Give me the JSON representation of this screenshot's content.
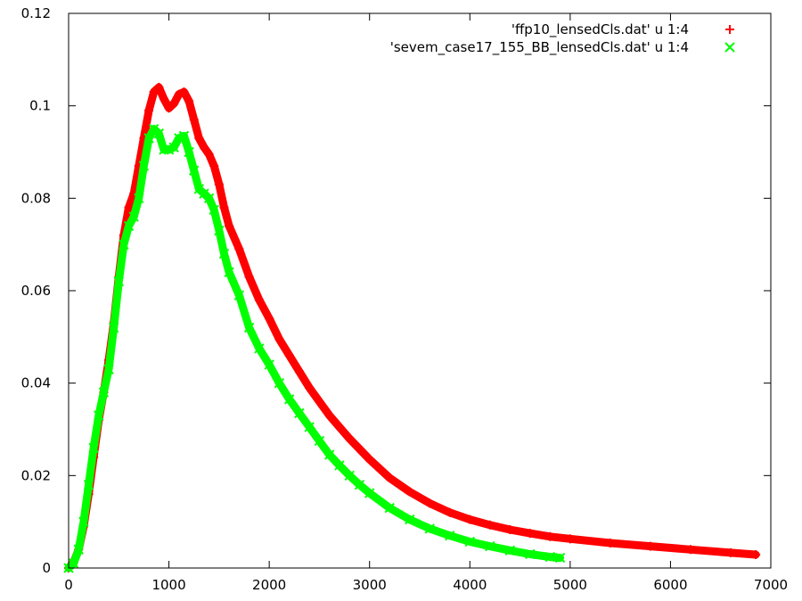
{
  "chart_data": {
    "type": "line",
    "title": "",
    "xlabel": "",
    "ylabel": "",
    "xlim": [
      0,
      7000
    ],
    "ylim": [
      0,
      0.12
    ],
    "x_ticks": [
      0,
      1000,
      2000,
      3000,
      4000,
      5000,
      6000,
      7000
    ],
    "x_tick_labels": [
      "0",
      "1000",
      "2000",
      "3000",
      "4000",
      "5000",
      "6000",
      "7000"
    ],
    "y_ticks": [
      0,
      0.02,
      0.04,
      0.06,
      0.08,
      0.1,
      0.12
    ],
    "y_tick_labels": [
      "0",
      "0.02",
      "0.04",
      "0.06",
      "0.08",
      "0.1",
      "0.12"
    ],
    "grid": false,
    "legend_position": "top-right",
    "series": [
      {
        "name": "'ffp10_lensedCls.dat' u 1:4",
        "color": "#ff0000",
        "marker": "+",
        "points": [
          [
            0,
            0.0
          ],
          [
            50,
            0.0012
          ],
          [
            100,
            0.004
          ],
          [
            150,
            0.009
          ],
          [
            200,
            0.016
          ],
          [
            250,
            0.024
          ],
          [
            300,
            0.032
          ],
          [
            350,
            0.038
          ],
          [
            400,
            0.045
          ],
          [
            450,
            0.053
          ],
          [
            500,
            0.063
          ],
          [
            550,
            0.072
          ],
          [
            600,
            0.078
          ],
          [
            650,
            0.081
          ],
          [
            700,
            0.087
          ],
          [
            750,
            0.093
          ],
          [
            800,
            0.099
          ],
          [
            850,
            0.103
          ],
          [
            900,
            0.104
          ],
          [
            950,
            0.1015
          ],
          [
            1000,
            0.0995
          ],
          [
            1050,
            0.1005
          ],
          [
            1100,
            0.1025
          ],
          [
            1150,
            0.103
          ],
          [
            1200,
            0.101
          ],
          [
            1250,
            0.097
          ],
          [
            1300,
            0.093
          ],
          [
            1350,
            0.091
          ],
          [
            1400,
            0.0895
          ],
          [
            1450,
            0.087
          ],
          [
            1500,
            0.083
          ],
          [
            1550,
            0.078
          ],
          [
            1600,
            0.074
          ],
          [
            1700,
            0.069
          ],
          [
            1800,
            0.063
          ],
          [
            1900,
            0.058
          ],
          [
            2000,
            0.054
          ],
          [
            2100,
            0.0495
          ],
          [
            2200,
            0.046
          ],
          [
            2300,
            0.0425
          ],
          [
            2400,
            0.039
          ],
          [
            2500,
            0.036
          ],
          [
            2600,
            0.033
          ],
          [
            2700,
            0.0305
          ],
          [
            2800,
            0.028
          ],
          [
            3000,
            0.0235
          ],
          [
            3200,
            0.0195
          ],
          [
            3400,
            0.0165
          ],
          [
            3600,
            0.014
          ],
          [
            3800,
            0.012
          ],
          [
            4000,
            0.0105
          ],
          [
            4200,
            0.0093
          ],
          [
            4400,
            0.0083
          ],
          [
            4600,
            0.0075
          ],
          [
            4800,
            0.0068
          ],
          [
            5000,
            0.0063
          ],
          [
            5400,
            0.0054
          ],
          [
            5800,
            0.0047
          ],
          [
            6200,
            0.004
          ],
          [
            6600,
            0.0033
          ],
          [
            6850,
            0.0029
          ]
        ]
      },
      {
        "name": "'sevem_case17_155_BB_lensedCls.dat' u 1:4",
        "color": "#00ff00",
        "marker": "x",
        "points": [
          [
            0,
            0.0
          ],
          [
            50,
            0.001
          ],
          [
            100,
            0.004
          ],
          [
            150,
            0.01
          ],
          [
            200,
            0.018
          ],
          [
            250,
            0.026
          ],
          [
            300,
            0.033
          ],
          [
            350,
            0.038
          ],
          [
            400,
            0.043
          ],
          [
            450,
            0.052
          ],
          [
            500,
            0.062
          ],
          [
            550,
            0.07
          ],
          [
            600,
            0.074
          ],
          [
            650,
            0.076
          ],
          [
            700,
            0.08
          ],
          [
            750,
            0.087
          ],
          [
            800,
            0.093
          ],
          [
            850,
            0.095
          ],
          [
            900,
            0.094
          ],
          [
            950,
            0.0905
          ],
          [
            1000,
            0.0905
          ],
          [
            1050,
            0.091
          ],
          [
            1100,
            0.093
          ],
          [
            1150,
            0.0935
          ],
          [
            1200,
            0.09
          ],
          [
            1250,
            0.086
          ],
          [
            1300,
            0.082
          ],
          [
            1350,
            0.081
          ],
          [
            1400,
            0.08
          ],
          [
            1450,
            0.0775
          ],
          [
            1500,
            0.073
          ],
          [
            1550,
            0.068
          ],
          [
            1600,
            0.064
          ],
          [
            1700,
            0.059
          ],
          [
            1800,
            0.052
          ],
          [
            1900,
            0.0475
          ],
          [
            2000,
            0.044
          ],
          [
            2100,
            0.04
          ],
          [
            2200,
            0.0365
          ],
          [
            2300,
            0.0335
          ],
          [
            2400,
            0.0305
          ],
          [
            2500,
            0.0275
          ],
          [
            2600,
            0.0245
          ],
          [
            2700,
            0.0222
          ],
          [
            2800,
            0.02
          ],
          [
            2900,
            0.018
          ],
          [
            3000,
            0.0162
          ],
          [
            3200,
            0.013
          ],
          [
            3400,
            0.0105
          ],
          [
            3600,
            0.0085
          ],
          [
            3800,
            0.007
          ],
          [
            4000,
            0.0057
          ],
          [
            4200,
            0.0047
          ],
          [
            4400,
            0.0038
          ],
          [
            4600,
            0.003
          ],
          [
            4800,
            0.0024
          ],
          [
            4900,
            0.0022
          ]
        ]
      }
    ]
  }
}
